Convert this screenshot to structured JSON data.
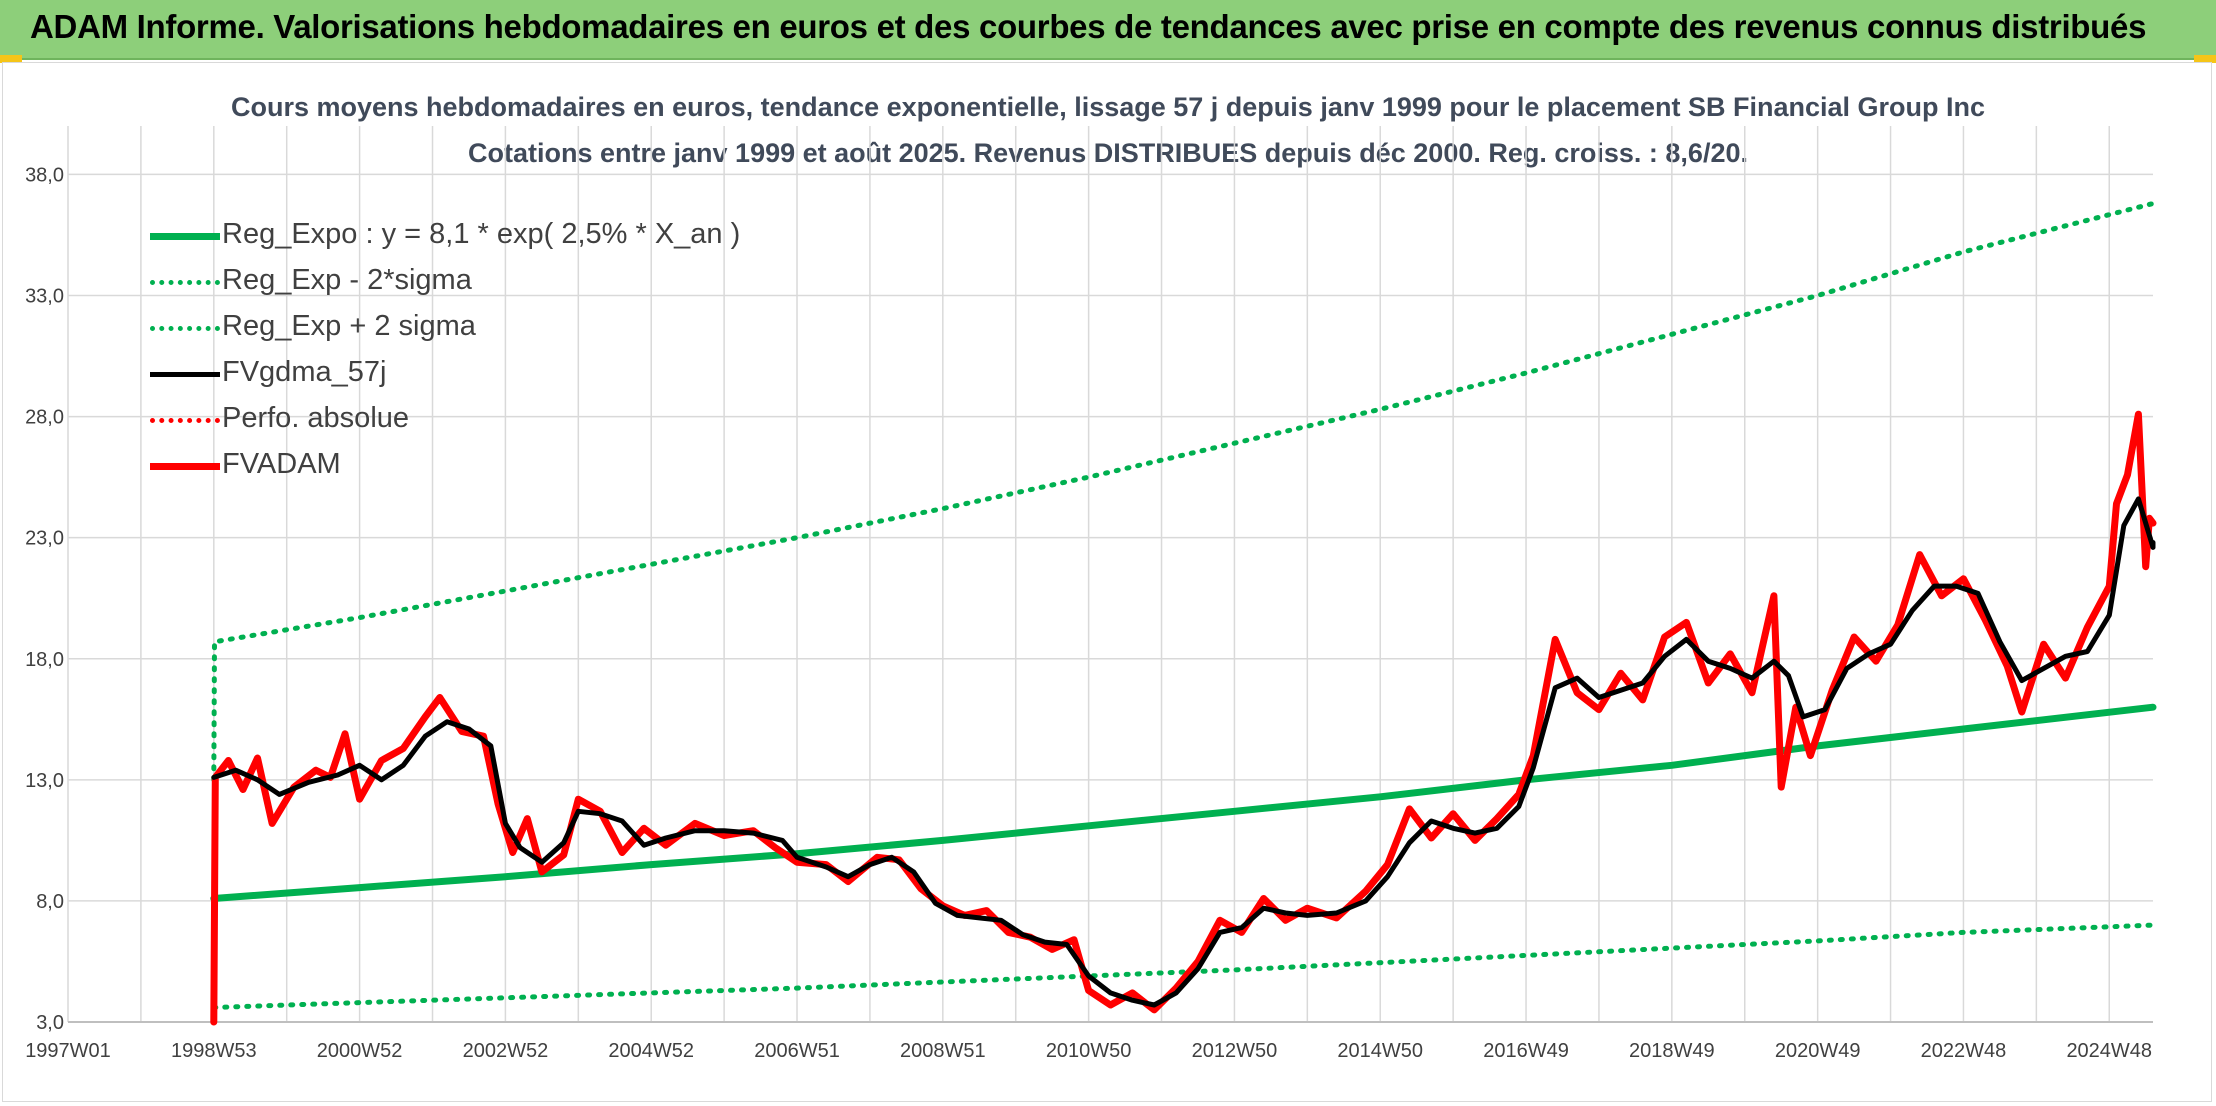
{
  "banner": {
    "title": "ADAM Informe. Valorisations hebdomadaires en euros et des courbes de tendances avec prise en compte des revenus connus distribués"
  },
  "colors": {
    "banner_bg": "#8dcf7a",
    "trend_green": "#00b050",
    "price_red": "#ff0000",
    "smooth_black": "#000000",
    "grid": "#d9d9d9"
  },
  "chart_data": {
    "type": "line",
    "title": "Cours moyens hebdomadaires en euros, tendance exponentielle, lissage 57 j depuis janv 1999 pour le placement SB Financial Group Inc",
    "subtitle": "Cotations entre janv 1999 et août 2025. Revenus DISTRIBUES depuis déc 2000. Reg. croiss. : 8,6/20.",
    "xlabel": "",
    "ylabel": "",
    "x_range": [
      1997.0,
      2025.6
    ],
    "ylim": [
      3.0,
      40.0
    ],
    "y_ticks": [
      "3,0",
      "8,0",
      "13,0",
      "18,0",
      "23,0",
      "28,0",
      "33,0",
      "38,0"
    ],
    "y_tick_values": [
      3,
      8,
      13,
      18,
      23,
      28,
      33,
      38
    ],
    "x_ticks": [
      "1997W01",
      "1998W53",
      "2000W52",
      "2002W52",
      "2004W52",
      "2006W51",
      "2008W51",
      "2010W50",
      "2012W50",
      "2014W50",
      "2016W49",
      "2018W49",
      "2020W49",
      "2022W48",
      "2024W48"
    ],
    "x_tick_values": [
      1997.0,
      1999.0,
      2001.0,
      2003.0,
      2005.0,
      2007.0,
      2009.0,
      2011.0,
      2013.0,
      2015.0,
      2017.0,
      2019.0,
      2021.0,
      2023.0,
      2025.0
    ],
    "grid": true,
    "legend_position": "top-left",
    "series": [
      {
        "name": "Reg_Expo : y = 8,1 * exp( 2,5% *  X_an )",
        "style": "solid-thick",
        "color": "#00b050",
        "points": [
          [
            1999.0,
            8.1
          ],
          [
            2001.0,
            8.55
          ],
          [
            2003.0,
            9.0
          ],
          [
            2005.0,
            9.5
          ],
          [
            2007.0,
            9.95
          ],
          [
            2009.0,
            10.5
          ],
          [
            2011.0,
            11.1
          ],
          [
            2013.0,
            11.7
          ],
          [
            2015.0,
            12.3
          ],
          [
            2017.0,
            13.0
          ],
          [
            2019.0,
            13.6
          ],
          [
            2021.0,
            14.4
          ],
          [
            2023.0,
            15.1
          ],
          [
            2025.6,
            16.0
          ]
        ]
      },
      {
        "name": "Reg_Exp - 2*sigma",
        "style": "dotted",
        "color": "#00b050",
        "points": [
          [
            1999.0,
            3.6
          ],
          [
            2001.0,
            3.8
          ],
          [
            2003.0,
            4.0
          ],
          [
            2005.0,
            4.2
          ],
          [
            2007.0,
            4.4
          ],
          [
            2009.0,
            4.65
          ],
          [
            2011.0,
            4.9
          ],
          [
            2013.0,
            5.15
          ],
          [
            2015.0,
            5.45
          ],
          [
            2017.0,
            5.75
          ],
          [
            2019.0,
            6.05
          ],
          [
            2021.0,
            6.35
          ],
          [
            2023.0,
            6.7
          ],
          [
            2025.6,
            7.0
          ]
        ]
      },
      {
        "name": "Reg_Exp + 2 sigma",
        "style": "dotted",
        "color": "#00b050",
        "points": [
          [
            1999.0,
            13.0
          ],
          [
            1999.01,
            18.7
          ],
          [
            2001.0,
            19.7
          ],
          [
            2003.0,
            20.8
          ],
          [
            2005.0,
            21.9
          ],
          [
            2007.0,
            23.0
          ],
          [
            2009.0,
            24.2
          ],
          [
            2011.0,
            25.5
          ],
          [
            2013.0,
            26.9
          ],
          [
            2015.0,
            28.3
          ],
          [
            2017.0,
            29.8
          ],
          [
            2019.0,
            31.4
          ],
          [
            2021.0,
            33.0
          ],
          [
            2023.0,
            34.8
          ],
          [
            2025.6,
            36.8
          ]
        ]
      },
      {
        "name": "FVgdma_57j",
        "style": "solid",
        "color": "#000000",
        "points": [
          [
            1999.0,
            13.1
          ],
          [
            1999.3,
            13.4
          ],
          [
            1999.6,
            13.0
          ],
          [
            1999.9,
            12.4
          ],
          [
            2000.3,
            12.9
          ],
          [
            2000.7,
            13.2
          ],
          [
            2001.0,
            13.6
          ],
          [
            2001.3,
            13.0
          ],
          [
            2001.6,
            13.6
          ],
          [
            2001.9,
            14.8
          ],
          [
            2002.2,
            15.4
          ],
          [
            2002.5,
            15.1
          ],
          [
            2002.8,
            14.4
          ],
          [
            2003.0,
            11.2
          ],
          [
            2003.2,
            10.2
          ],
          [
            2003.5,
            9.6
          ],
          [
            2003.8,
            10.4
          ],
          [
            2004.0,
            11.7
          ],
          [
            2004.3,
            11.6
          ],
          [
            2004.6,
            11.3
          ],
          [
            2004.9,
            10.3
          ],
          [
            2005.2,
            10.6
          ],
          [
            2005.6,
            10.9
          ],
          [
            2006.0,
            10.9
          ],
          [
            2006.4,
            10.8
          ],
          [
            2006.8,
            10.5
          ],
          [
            2007.0,
            9.8
          ],
          [
            2007.4,
            9.4
          ],
          [
            2007.7,
            9.0
          ],
          [
            2008.0,
            9.5
          ],
          [
            2008.3,
            9.8
          ],
          [
            2008.6,
            9.2
          ],
          [
            2008.9,
            7.9
          ],
          [
            2009.2,
            7.4
          ],
          [
            2009.5,
            7.3
          ],
          [
            2009.8,
            7.2
          ],
          [
            2010.1,
            6.6
          ],
          [
            2010.4,
            6.3
          ],
          [
            2010.7,
            6.2
          ],
          [
            2011.0,
            4.9
          ],
          [
            2011.3,
            4.2
          ],
          [
            2011.6,
            3.9
          ],
          [
            2011.9,
            3.7
          ],
          [
            2012.2,
            4.2
          ],
          [
            2012.5,
            5.2
          ],
          [
            2012.8,
            6.7
          ],
          [
            2013.1,
            6.9
          ],
          [
            2013.4,
            7.7
          ],
          [
            2013.7,
            7.5
          ],
          [
            2014.0,
            7.4
          ],
          [
            2014.4,
            7.5
          ],
          [
            2014.8,
            8.0
          ],
          [
            2015.1,
            9.0
          ],
          [
            2015.4,
            10.4
          ],
          [
            2015.7,
            11.3
          ],
          [
            2016.0,
            11.0
          ],
          [
            2016.3,
            10.8
          ],
          [
            2016.6,
            11.0
          ],
          [
            2016.9,
            11.9
          ],
          [
            2017.1,
            13.5
          ],
          [
            2017.4,
            16.8
          ],
          [
            2017.7,
            17.2
          ],
          [
            2018.0,
            16.4
          ],
          [
            2018.3,
            16.7
          ],
          [
            2018.6,
            17.0
          ],
          [
            2018.9,
            18.1
          ],
          [
            2019.2,
            18.8
          ],
          [
            2019.5,
            17.9
          ],
          [
            2019.8,
            17.6
          ],
          [
            2020.1,
            17.2
          ],
          [
            2020.4,
            17.9
          ],
          [
            2020.6,
            17.3
          ],
          [
            2020.8,
            15.6
          ],
          [
            2021.1,
            15.9
          ],
          [
            2021.4,
            17.6
          ],
          [
            2021.7,
            18.2
          ],
          [
            2022.0,
            18.6
          ],
          [
            2022.3,
            20.0
          ],
          [
            2022.6,
            21.0
          ],
          [
            2022.9,
            21.0
          ],
          [
            2023.2,
            20.7
          ],
          [
            2023.5,
            18.7
          ],
          [
            2023.8,
            17.1
          ],
          [
            2024.1,
            17.6
          ],
          [
            2024.4,
            18.1
          ],
          [
            2024.7,
            18.3
          ],
          [
            2025.0,
            19.8
          ],
          [
            2025.2,
            23.5
          ],
          [
            2025.4,
            24.6
          ],
          [
            2025.6,
            22.6
          ],
          [
            2025.6,
            22.8
          ]
        ]
      },
      {
        "name": "Perfo. absolue",
        "style": "dotted",
        "color": "#ff0000",
        "points": []
      },
      {
        "name": "FVADAM",
        "style": "solid-thick",
        "color": "#ff0000",
        "points": [
          [
            1999.0,
            3.0
          ],
          [
            1999.02,
            13.1
          ],
          [
            1999.2,
            13.8
          ],
          [
            1999.4,
            12.6
          ],
          [
            1999.6,
            13.9
          ],
          [
            1999.8,
            11.2
          ],
          [
            2000.1,
            12.7
          ],
          [
            2000.4,
            13.4
          ],
          [
            2000.6,
            13.1
          ],
          [
            2000.8,
            14.9
          ],
          [
            2001.0,
            12.2
          ],
          [
            2001.3,
            13.8
          ],
          [
            2001.6,
            14.3
          ],
          [
            2001.9,
            15.6
          ],
          [
            2002.1,
            16.4
          ],
          [
            2002.4,
            15.0
          ],
          [
            2002.7,
            14.8
          ],
          [
            2002.9,
            12.0
          ],
          [
            2003.1,
            10.0
          ],
          [
            2003.3,
            11.4
          ],
          [
            2003.5,
            9.2
          ],
          [
            2003.8,
            9.9
          ],
          [
            2004.0,
            12.2
          ],
          [
            2004.3,
            11.7
          ],
          [
            2004.6,
            10.0
          ],
          [
            2004.9,
            11.0
          ],
          [
            2005.2,
            10.3
          ],
          [
            2005.6,
            11.2
          ],
          [
            2006.0,
            10.7
          ],
          [
            2006.4,
            10.9
          ],
          [
            2006.7,
            10.2
          ],
          [
            2007.0,
            9.6
          ],
          [
            2007.4,
            9.5
          ],
          [
            2007.7,
            8.8
          ],
          [
            2008.1,
            9.8
          ],
          [
            2008.4,
            9.7
          ],
          [
            2008.7,
            8.5
          ],
          [
            2009.0,
            7.8
          ],
          [
            2009.3,
            7.4
          ],
          [
            2009.6,
            7.6
          ],
          [
            2009.9,
            6.7
          ],
          [
            2010.2,
            6.5
          ],
          [
            2010.5,
            6.0
          ],
          [
            2010.8,
            6.4
          ],
          [
            2011.0,
            4.3
          ],
          [
            2011.3,
            3.7
          ],
          [
            2011.6,
            4.2
          ],
          [
            2011.9,
            3.5
          ],
          [
            2012.2,
            4.4
          ],
          [
            2012.5,
            5.5
          ],
          [
            2012.8,
            7.2
          ],
          [
            2013.1,
            6.7
          ],
          [
            2013.4,
            8.1
          ],
          [
            2013.7,
            7.2
          ],
          [
            2014.0,
            7.7
          ],
          [
            2014.4,
            7.3
          ],
          [
            2014.8,
            8.4
          ],
          [
            2015.1,
            9.5
          ],
          [
            2015.4,
            11.8
          ],
          [
            2015.7,
            10.6
          ],
          [
            2016.0,
            11.6
          ],
          [
            2016.3,
            10.5
          ],
          [
            2016.6,
            11.4
          ],
          [
            2016.9,
            12.4
          ],
          [
            2017.1,
            14.0
          ],
          [
            2017.4,
            18.8
          ],
          [
            2017.7,
            16.6
          ],
          [
            2018.0,
            15.9
          ],
          [
            2018.3,
            17.4
          ],
          [
            2018.6,
            16.3
          ],
          [
            2018.9,
            18.9
          ],
          [
            2019.2,
            19.5
          ],
          [
            2019.5,
            17.0
          ],
          [
            2019.8,
            18.2
          ],
          [
            2020.1,
            16.6
          ],
          [
            2020.4,
            20.6
          ],
          [
            2020.5,
            12.7
          ],
          [
            2020.7,
            16.0
          ],
          [
            2020.9,
            14.0
          ],
          [
            2021.2,
            16.7
          ],
          [
            2021.5,
            18.9
          ],
          [
            2021.8,
            17.9
          ],
          [
            2022.1,
            19.4
          ],
          [
            2022.4,
            22.3
          ],
          [
            2022.7,
            20.6
          ],
          [
            2023.0,
            21.3
          ],
          [
            2023.3,
            19.6
          ],
          [
            2023.6,
            17.7
          ],
          [
            2023.8,
            15.8
          ],
          [
            2024.1,
            18.6
          ],
          [
            2024.4,
            17.2
          ],
          [
            2024.7,
            19.3
          ],
          [
            2025.0,
            21.0
          ],
          [
            2025.1,
            24.4
          ],
          [
            2025.25,
            25.6
          ],
          [
            2025.4,
            28.1
          ],
          [
            2025.5,
            21.8
          ],
          [
            2025.55,
            23.8
          ],
          [
            2025.6,
            23.6
          ]
        ]
      }
    ]
  }
}
